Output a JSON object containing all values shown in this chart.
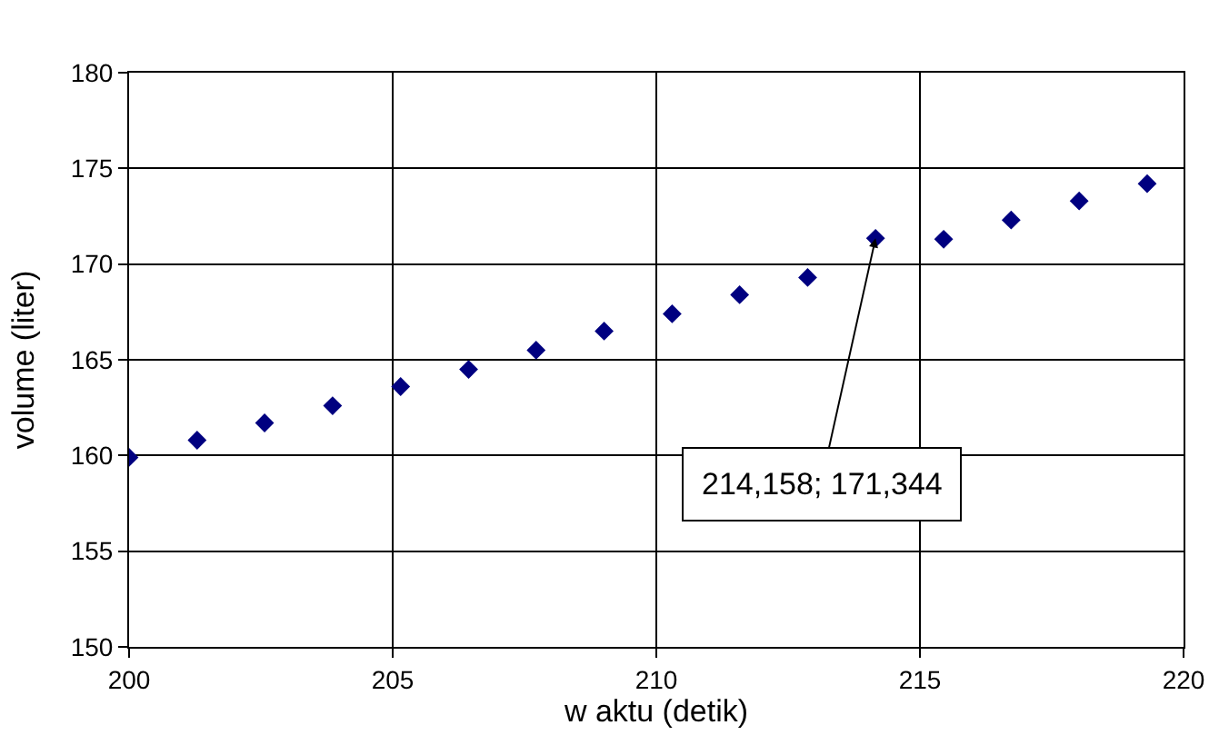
{
  "chart_data": {
    "type": "scatter",
    "xlabel": "w aktu (detik)",
    "ylabel": "volume (liter)",
    "x": [
      200,
      201.29,
      202.57,
      203.86,
      205.15,
      206.44,
      207.72,
      209.01,
      210.3,
      211.58,
      212.87,
      214.158,
      215.45,
      216.73,
      218.02,
      219.31
    ],
    "series": [
      {
        "color": "#000080",
        "values": [
          159.9,
          160.8,
          161.7,
          162.6,
          163.6,
          164.5,
          165.5,
          166.5,
          167.4,
          168.4,
          169.3,
          171.344,
          171.3,
          172.3,
          173.3,
          174.2
        ]
      }
    ],
    "xlim": [
      200,
      220
    ],
    "xticks": [
      200,
      205,
      210,
      215,
      220
    ],
    "ylim": [
      150,
      180
    ],
    "yticks": [
      150,
      155,
      160,
      165,
      170,
      175,
      180
    ],
    "grid": true,
    "marker": "diamond",
    "legend": false,
    "annotations": [
      {
        "text": "214,158; 171,344",
        "x": 214.158,
        "y": 171.344
      }
    ]
  }
}
